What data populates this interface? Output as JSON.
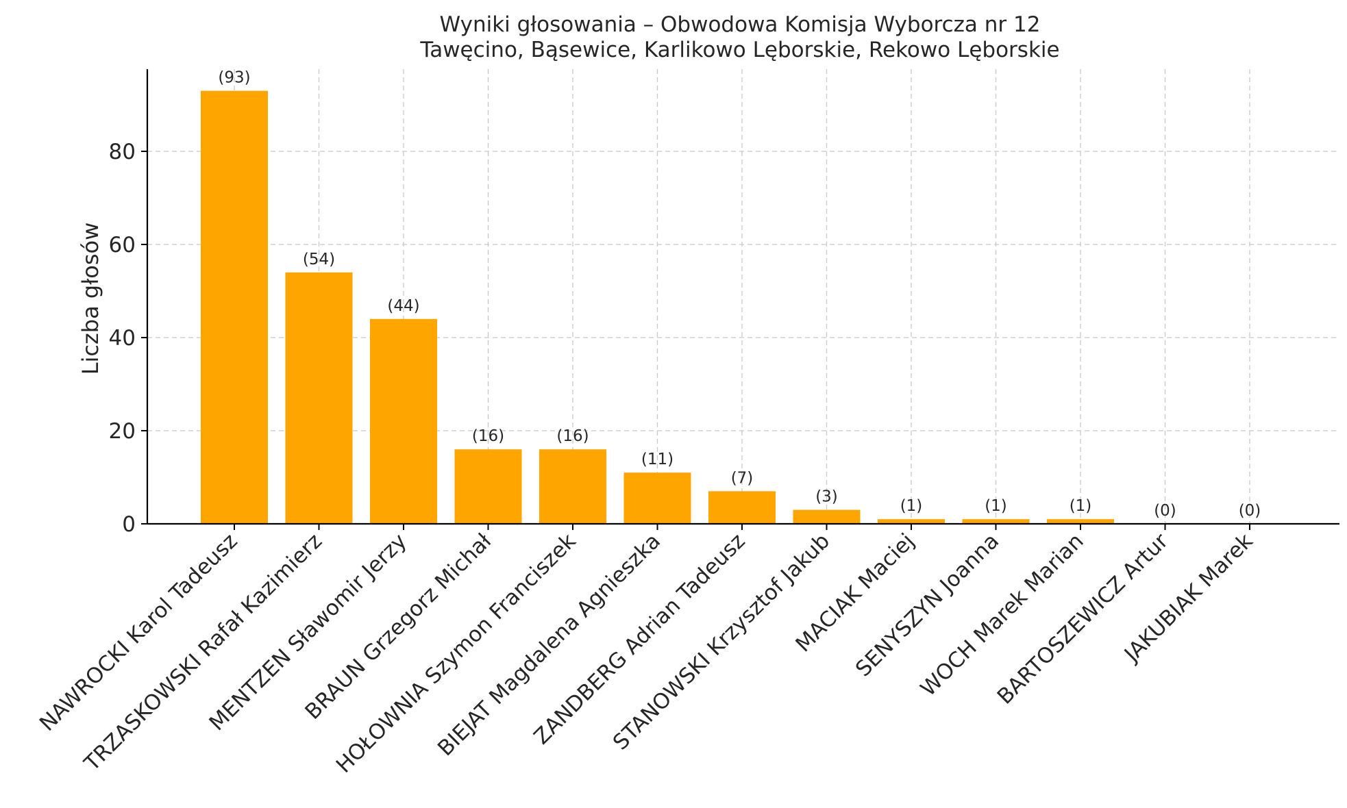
{
  "chart_data": {
    "type": "bar",
    "title": "Wyniki głosowania – Obwodowa Komisja Wyborcza nr 12",
    "subtitle": "Tawęcino, Bąsewice, Karlikowo Lęborskie, Rekowo Lęborskie",
    "xlabel": "",
    "ylabel": "Liczba głosów",
    "categories": [
      "NAWROCKI Karol Tadeusz",
      "TRZASKOWSKI Rafał Kazimierz",
      "MENTZEN Sławomir Jerzy",
      "BRAUN Grzegorz Michał",
      "HOŁOWNIA Szymon Franciszek",
      "BIEJAT Magdalena Agnieszka",
      "ZANDBERG Adrian Tadeusz",
      "STANOWSKI Krzysztof Jakub",
      "MACIAK Maciej",
      "SENYSZYN Joanna",
      "WOCH Marek Marian",
      "BARTOSZEWICZ Artur",
      "JAKUBIAK Marek"
    ],
    "values": [
      93,
      54,
      44,
      16,
      16,
      11,
      7,
      3,
      1,
      1,
      1,
      0,
      0
    ],
    "value_labels": [
      "(93)",
      "(54)",
      "(44)",
      "(16)",
      "(16)",
      "(11)",
      "(7)",
      "(3)",
      "(1)",
      "(1)",
      "(1)",
      "(0)",
      "(0)"
    ],
    "yticks": [
      0,
      20,
      40,
      60,
      80
    ],
    "ylim": [
      0,
      97.65
    ],
    "grid": true,
    "bar_color": "#FFA500"
  }
}
